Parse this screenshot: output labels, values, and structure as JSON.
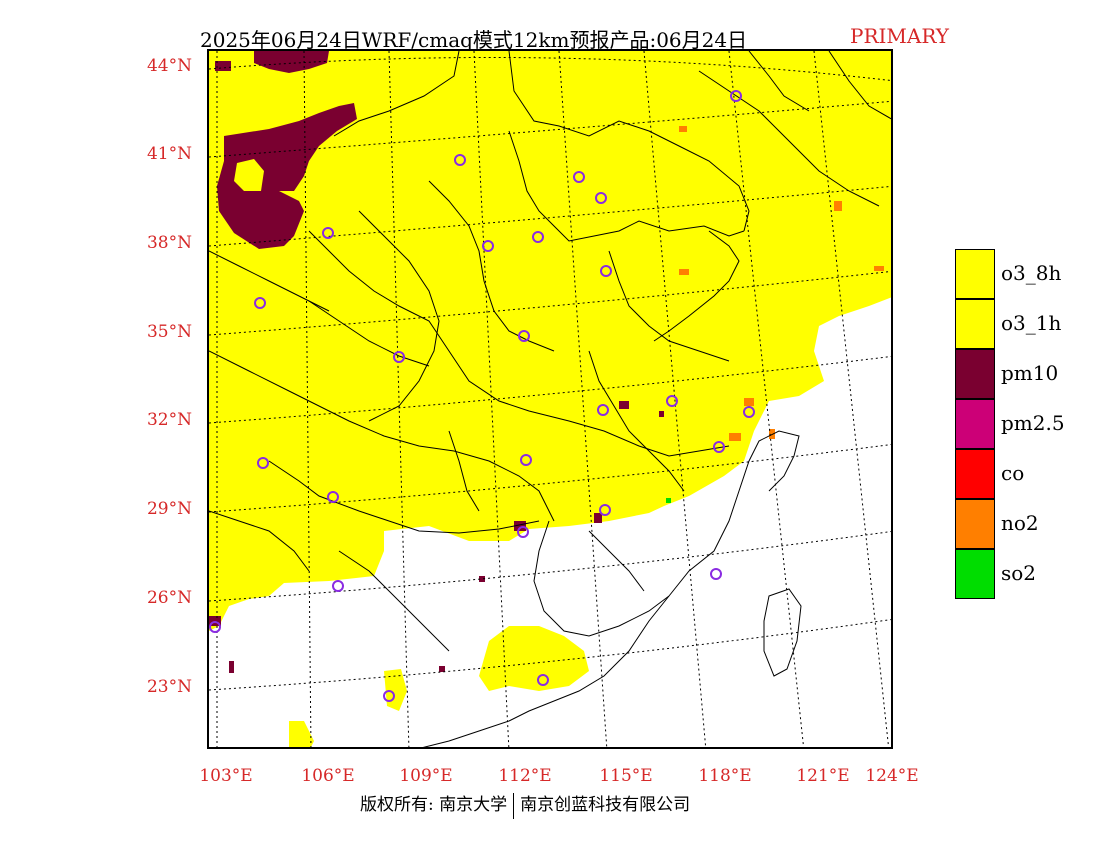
{
  "title": {
    "main": "2025年06月24日WRF/cmaq模式12km预报产品:06月24日",
    "tag": "PRIMARY",
    "tag_color": "#d62828"
  },
  "lat_labels": [
    "44°N",
    "41°N",
    "38°N",
    "35°N",
    "32°N",
    "29°N",
    "26°N",
    "23°N"
  ],
  "lon_labels": [
    "103°E",
    "106°E",
    "109°E",
    "112°E",
    "115°E",
    "118°E",
    "121°E",
    "124°E"
  ],
  "legend": [
    {
      "label": "o3_8h",
      "color": "#ffff00"
    },
    {
      "label": "o3_1h",
      "color": "#ffff00"
    },
    {
      "label": "pm10",
      "color": "#7a0030"
    },
    {
      "label": "pm2.5",
      "color": "#cc0077"
    },
    {
      "label": "co",
      "color": "#ff0000"
    },
    {
      "label": "no2",
      "color": "#ff7f00"
    },
    {
      "label": "so2",
      "color": "#00dd00"
    }
  ],
  "copyright": {
    "left": "版权所有: 南京大学",
    "right": "南京创蓝科技有限公司"
  },
  "colors": {
    "o3": "#ffff00",
    "pm10": "#7a0030",
    "no2": "#ff7f00",
    "so2": "#00dd00",
    "station": "#8a2be2",
    "axis_label": "#d62828"
  },
  "map_legend_icons": [
    "station-circle-icon"
  ]
}
